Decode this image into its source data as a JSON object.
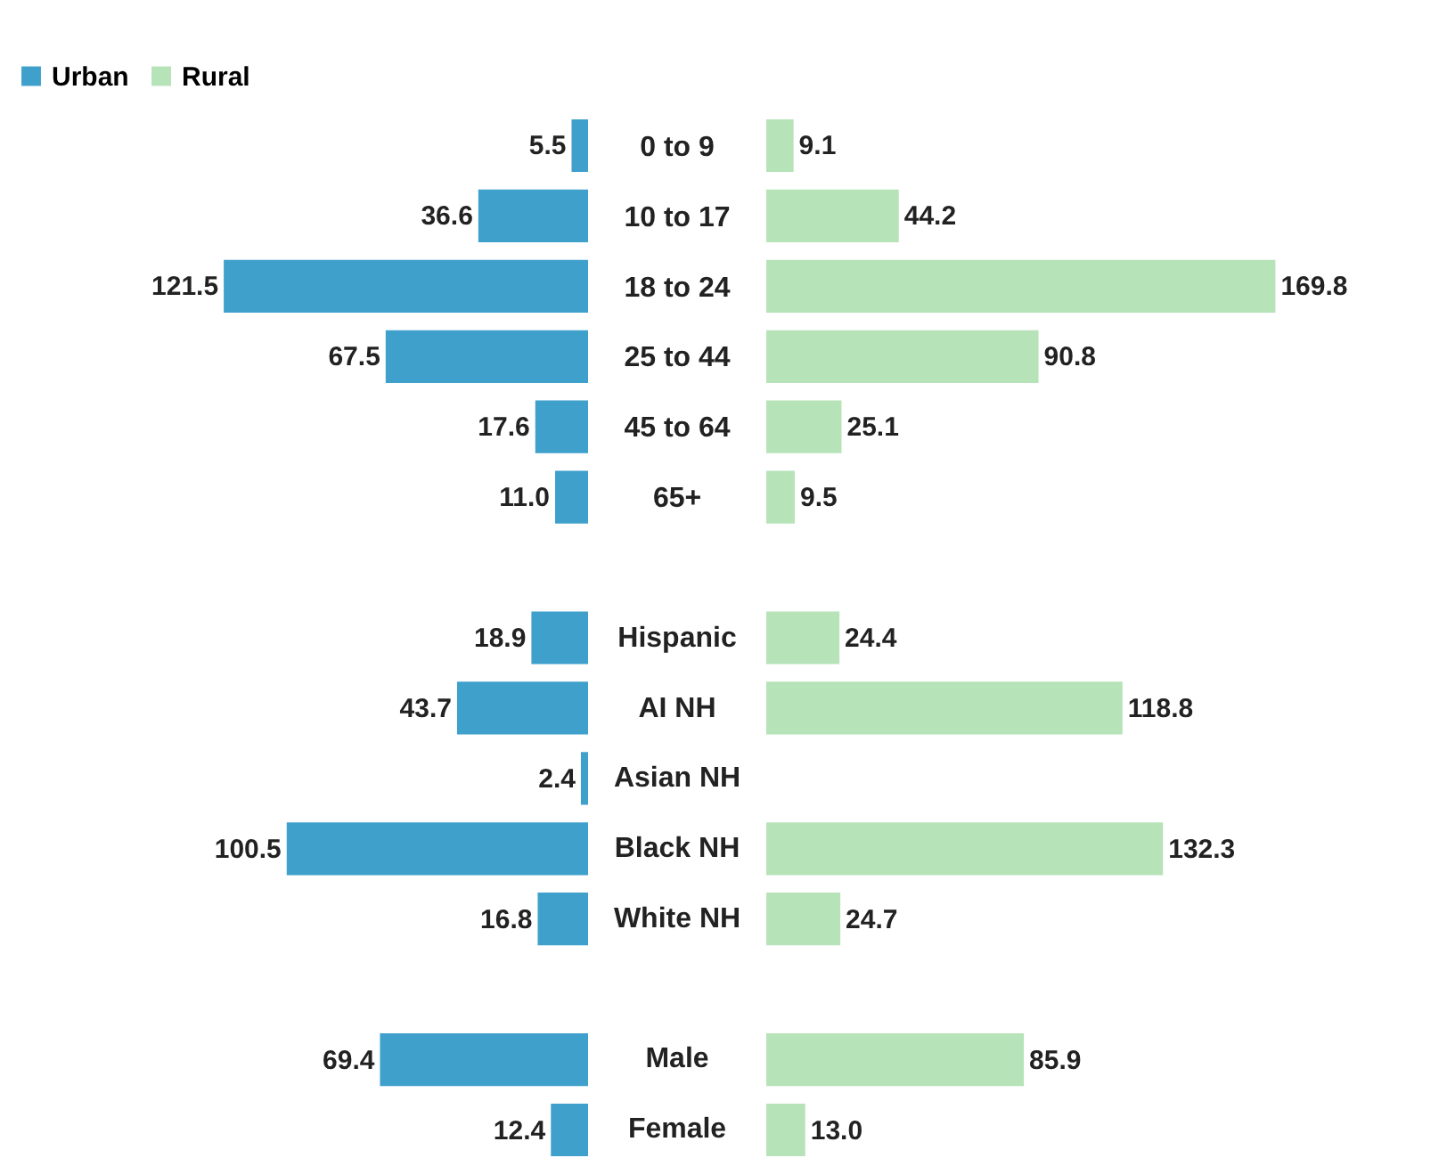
{
  "chart_data": [
    {
      "type": "bar",
      "orientation": "horizontal",
      "legend": "top left",
      "categories": [
        "0 to 9",
        "10 to 17",
        "18 to 24",
        "25 to 44",
        "45 to 64",
        "65+",
        null,
        "Hispanic",
        "AI NH",
        "Asian NH",
        "Black NH",
        "White NH",
        null,
        "Male",
        "Female"
      ],
      "series": [
        {
          "name": "Urban",
          "color": "#3fa0cc",
          "values": [
            5.5,
            36.6,
            121.5,
            67.5,
            17.6,
            11.0,
            null,
            18.9,
            43.7,
            2.4,
            100.5,
            16.8,
            null,
            69.4,
            12.4
          ],
          "value_labels": [
            "5.5",
            "36.6",
            "121.5",
            "67.5",
            "17.6",
            "11.0",
            null,
            "18.9",
            "43.7",
            "2.4",
            "100.5",
            "16.8",
            null,
            "69.4",
            "12.4"
          ]
        }
      ]
    },
    {
      "type": "bar",
      "orientation": "horizontal",
      "categories": [
        null,
        null,
        null,
        null,
        null,
        null,
        null,
        null,
        null,
        null,
        null,
        null,
        null,
        null,
        null
      ],
      "series": [
        {
          "name": "Rural",
          "color": "#b6e3b8",
          "values": [
            9.1,
            44.2,
            169.8,
            90.8,
            25.1,
            9.5,
            null,
            24.4,
            118.8,
            null,
            132.3,
            24.7,
            null,
            85.9,
            13.0
          ],
          "value_labels": [
            "9.1",
            "44.2",
            "169.8",
            "90.8",
            "25.1",
            "9.5",
            null,
            "24.4",
            "118.8",
            null,
            "132.3",
            "24.7",
            null,
            "85.9",
            "13.0"
          ]
        }
      ]
    }
  ]
}
